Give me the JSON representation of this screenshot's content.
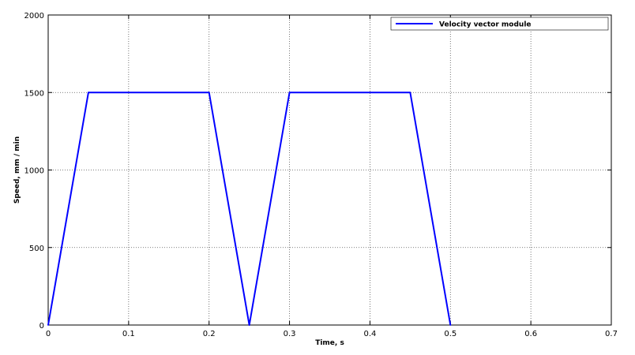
{
  "chart_data": {
    "type": "line",
    "title": "",
    "xlabel": "Time, s",
    "ylabel": "Speed, mm / min",
    "xlim": [
      0,
      0.7
    ],
    "ylim": [
      0,
      2000
    ],
    "xticks": [
      0,
      0.1,
      0.2,
      0.3,
      0.4,
      0.5,
      0.6,
      0.7
    ],
    "xtick_labels": [
      "0",
      "0.1",
      "0.2",
      "0.3",
      "0.4",
      "0.5",
      "0.6",
      "0.7"
    ],
    "yticks": [
      0,
      500,
      1000,
      1500,
      2000
    ],
    "ytick_labels": [
      "0",
      "500",
      "1000",
      "1500",
      "2000"
    ],
    "grid": true,
    "legend": {
      "placement": "top-right"
    },
    "series": [
      {
        "name": "Velocity vector module",
        "color": "#0000ff",
        "x": [
          0,
          0.05,
          0.2,
          0.25,
          0.3,
          0.45,
          0.5
        ],
        "y": [
          0,
          1500,
          1500,
          0,
          1500,
          1500,
          0
        ]
      }
    ]
  }
}
